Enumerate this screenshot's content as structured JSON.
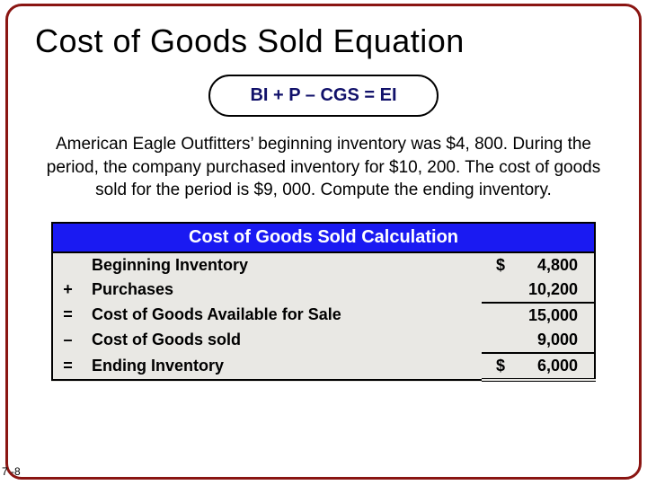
{
  "title": "Cost of Goods Sold Equation",
  "formula": "BI + P – CGS = EI",
  "body": "American Eagle Outfitters’ beginning inventory was $4, 800. During the period, the company purchased inventory for $10, 200. The cost of goods sold for the period is $9, 000. Compute the ending inventory.",
  "calc": {
    "heading": "Cost of Goods Sold Calculation",
    "rows": [
      {
        "op": "",
        "label": "Beginning Inventory",
        "currency": "$",
        "value": "4,800",
        "uclass": ""
      },
      {
        "op": "+",
        "label": "Purchases",
        "currency": "",
        "value": "10,200",
        "uclass": "underline-single"
      },
      {
        "op": "=",
        "label": "Cost of Goods Available for Sale",
        "currency": "",
        "value": "15,000",
        "uclass": ""
      },
      {
        "op": "–",
        "label": "Cost of Goods sold",
        "currency": "",
        "value": "9,000",
        "uclass": "underline-single"
      },
      {
        "op": "=",
        "label": "Ending Inventory",
        "currency": "$",
        "value": "6,000",
        "uclass": "underline-double"
      }
    ]
  },
  "colors": {
    "frame_border": "#8a1512",
    "formula_text": "#11116a",
    "table_header_bg": "#1a1af2",
    "table_bg": "#e9e8e4"
  },
  "page_number": "7 -8"
}
